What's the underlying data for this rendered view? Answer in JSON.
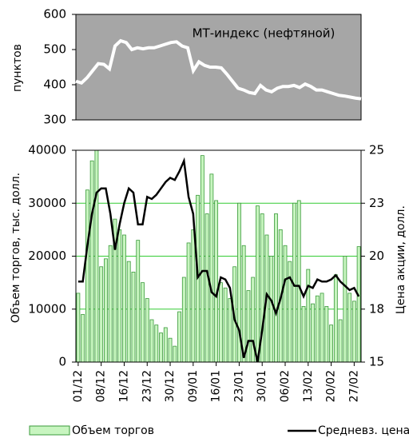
{
  "chart_data": [
    {
      "type": "line",
      "ylabel": "пунктов",
      "annotation": "МТ-индекс (нефтяной)",
      "background": "#a6a6a6",
      "color": "#ffffff",
      "ylim": [
        300,
        600
      ],
      "yticks": [
        300,
        400,
        500,
        600
      ],
      "values": [
        410,
        405,
        420,
        440,
        460,
        458,
        445,
        510,
        525,
        520,
        500,
        505,
        502,
        505,
        505,
        510,
        515,
        520,
        522,
        510,
        505,
        440,
        465,
        455,
        450,
        450,
        448,
        430,
        410,
        390,
        385,
        378,
        375,
        398,
        385,
        380,
        390,
        395,
        395,
        398,
        392,
        402,
        395,
        385,
        385,
        380,
        375,
        370,
        368,
        365,
        362,
        360
      ]
    },
    {
      "type": "bar",
      "ylabel": "Объем торгов, тыс. долл.",
      "y2label": "Цена акции, долл.",
      "grid": true,
      "grid_color": "#33cc33",
      "ylim": [
        0,
        40000
      ],
      "yticks": [
        0,
        10000,
        20000,
        30000,
        40000
      ],
      "y2lim": [
        15,
        25
      ],
      "y2ticks": [
        15,
        {
          "value": 17.5,
          "label": "18"
        },
        20,
        {
          "value": 22.5,
          "label": "23"
        },
        25
      ],
      "categories": [
        "01/12",
        null,
        null,
        null,
        null,
        "08/12",
        null,
        null,
        null,
        null,
        "16/12",
        null,
        null,
        null,
        null,
        "23/12",
        null,
        null,
        null,
        null,
        "30/12",
        null,
        null,
        null,
        null,
        "09/01",
        null,
        null,
        null,
        null,
        "16/01",
        null,
        null,
        null,
        null,
        "23/01",
        null,
        null,
        null,
        null,
        "30/01",
        null,
        null,
        null,
        null,
        "06/02",
        null,
        null,
        null,
        null,
        "13/02",
        null,
        null,
        null,
        null,
        "20/02",
        null,
        null,
        null,
        null,
        "27/02",
        null
      ],
      "series": [
        {
          "name": "Объем торгов",
          "type": "bar",
          "color": "#c8f5c0",
          "stroke": "#3a9a3a",
          "values": [
            13000,
            9000,
            32500,
            38000,
            40000,
            18000,
            19500,
            22000,
            27000,
            25000,
            24000,
            19000,
            17000,
            23000,
            15000,
            12000,
            8000,
            7000,
            5500,
            6500,
            4500,
            3000,
            9500,
            16000,
            22500,
            25000,
            31500,
            39000,
            28000,
            35500,
            30500,
            15000,
            14000,
            12000,
            18000,
            30000,
            22000,
            13500,
            16000,
            29500,
            28000,
            24000,
            20000,
            28000,
            25000,
            22000,
            19000,
            30000,
            30500,
            10500,
            17500,
            11000,
            12500,
            13000,
            10500,
            7000,
            16500,
            8000,
            20000,
            13000,
            11500,
            21800
          ]
        },
        {
          "name": "Средневз. цена",
          "type": "line",
          "axis": "y2",
          "color": "#000000",
          "values": [
            18.8,
            18.8,
            20.5,
            22.0,
            23.0,
            23.2,
            23.2,
            22.0,
            20.3,
            21.5,
            22.5,
            23.2,
            23.0,
            21.5,
            21.5,
            22.8,
            22.7,
            22.9,
            23.2,
            23.5,
            23.7,
            23.6,
            24.0,
            24.5,
            22.8,
            22.0,
            19.0,
            19.3,
            19.3,
            18.3,
            18.1,
            19.0,
            18.9,
            18.5,
            17.0,
            16.5,
            15.2,
            16.0,
            16.0,
            15.0,
            16.5,
            18.2,
            17.9,
            17.3,
            18.0,
            18.9,
            19.0,
            18.6,
            18.6,
            18.1,
            18.6,
            18.5,
            18.9,
            18.8,
            18.8,
            18.9,
            19.1,
            18.8,
            18.6,
            18.4,
            18.5,
            18.1
          ]
        }
      ]
    }
  ]
}
